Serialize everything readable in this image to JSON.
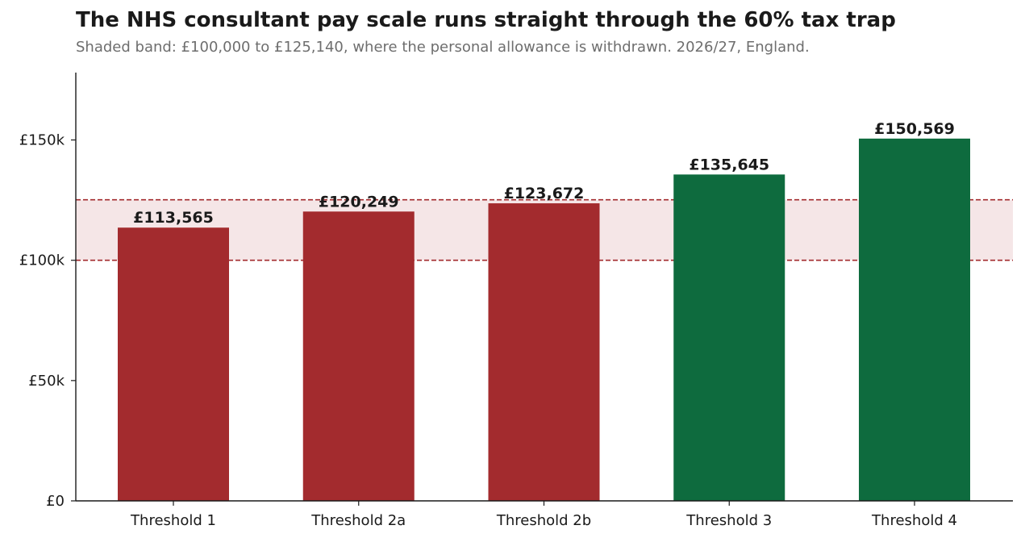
{
  "chart_data": {
    "type": "bar",
    "title": "The NHS consultant pay scale runs straight through the 60% tax trap",
    "subtitle": "Shaded band: £100,000 to £125,140, where the personal allowance is withdrawn. 2026/27, England.",
    "xlabel": "",
    "ylabel": "",
    "categories": [
      "Threshold 1",
      "Threshold 2a",
      "Threshold 2b",
      "Threshold 3",
      "Threshold 4"
    ],
    "values": [
      113565,
      120249,
      123672,
      135645,
      150569
    ],
    "value_labels": [
      "£113,565",
      "£120,249",
      "£123,672",
      "£135,645",
      "£150,569"
    ],
    "bar_colors": [
      "#a32b2e",
      "#a32b2e",
      "#a32b2e",
      "#0e6b3e",
      "#0e6b3e"
    ],
    "ylim": [
      0,
      178000
    ],
    "yticks": [
      {
        "value": 0,
        "label": "£0"
      },
      {
        "value": 50000,
        "label": "£50k"
      },
      {
        "value": 100000,
        "label": "£100k"
      },
      {
        "value": 150000,
        "label": "£150k"
      }
    ],
    "shaded_band": {
      "from": 100000,
      "to": 125140,
      "color": "#f5e6e7",
      "line_color": "#a32b2e"
    },
    "grid": false,
    "legend": "none"
  }
}
